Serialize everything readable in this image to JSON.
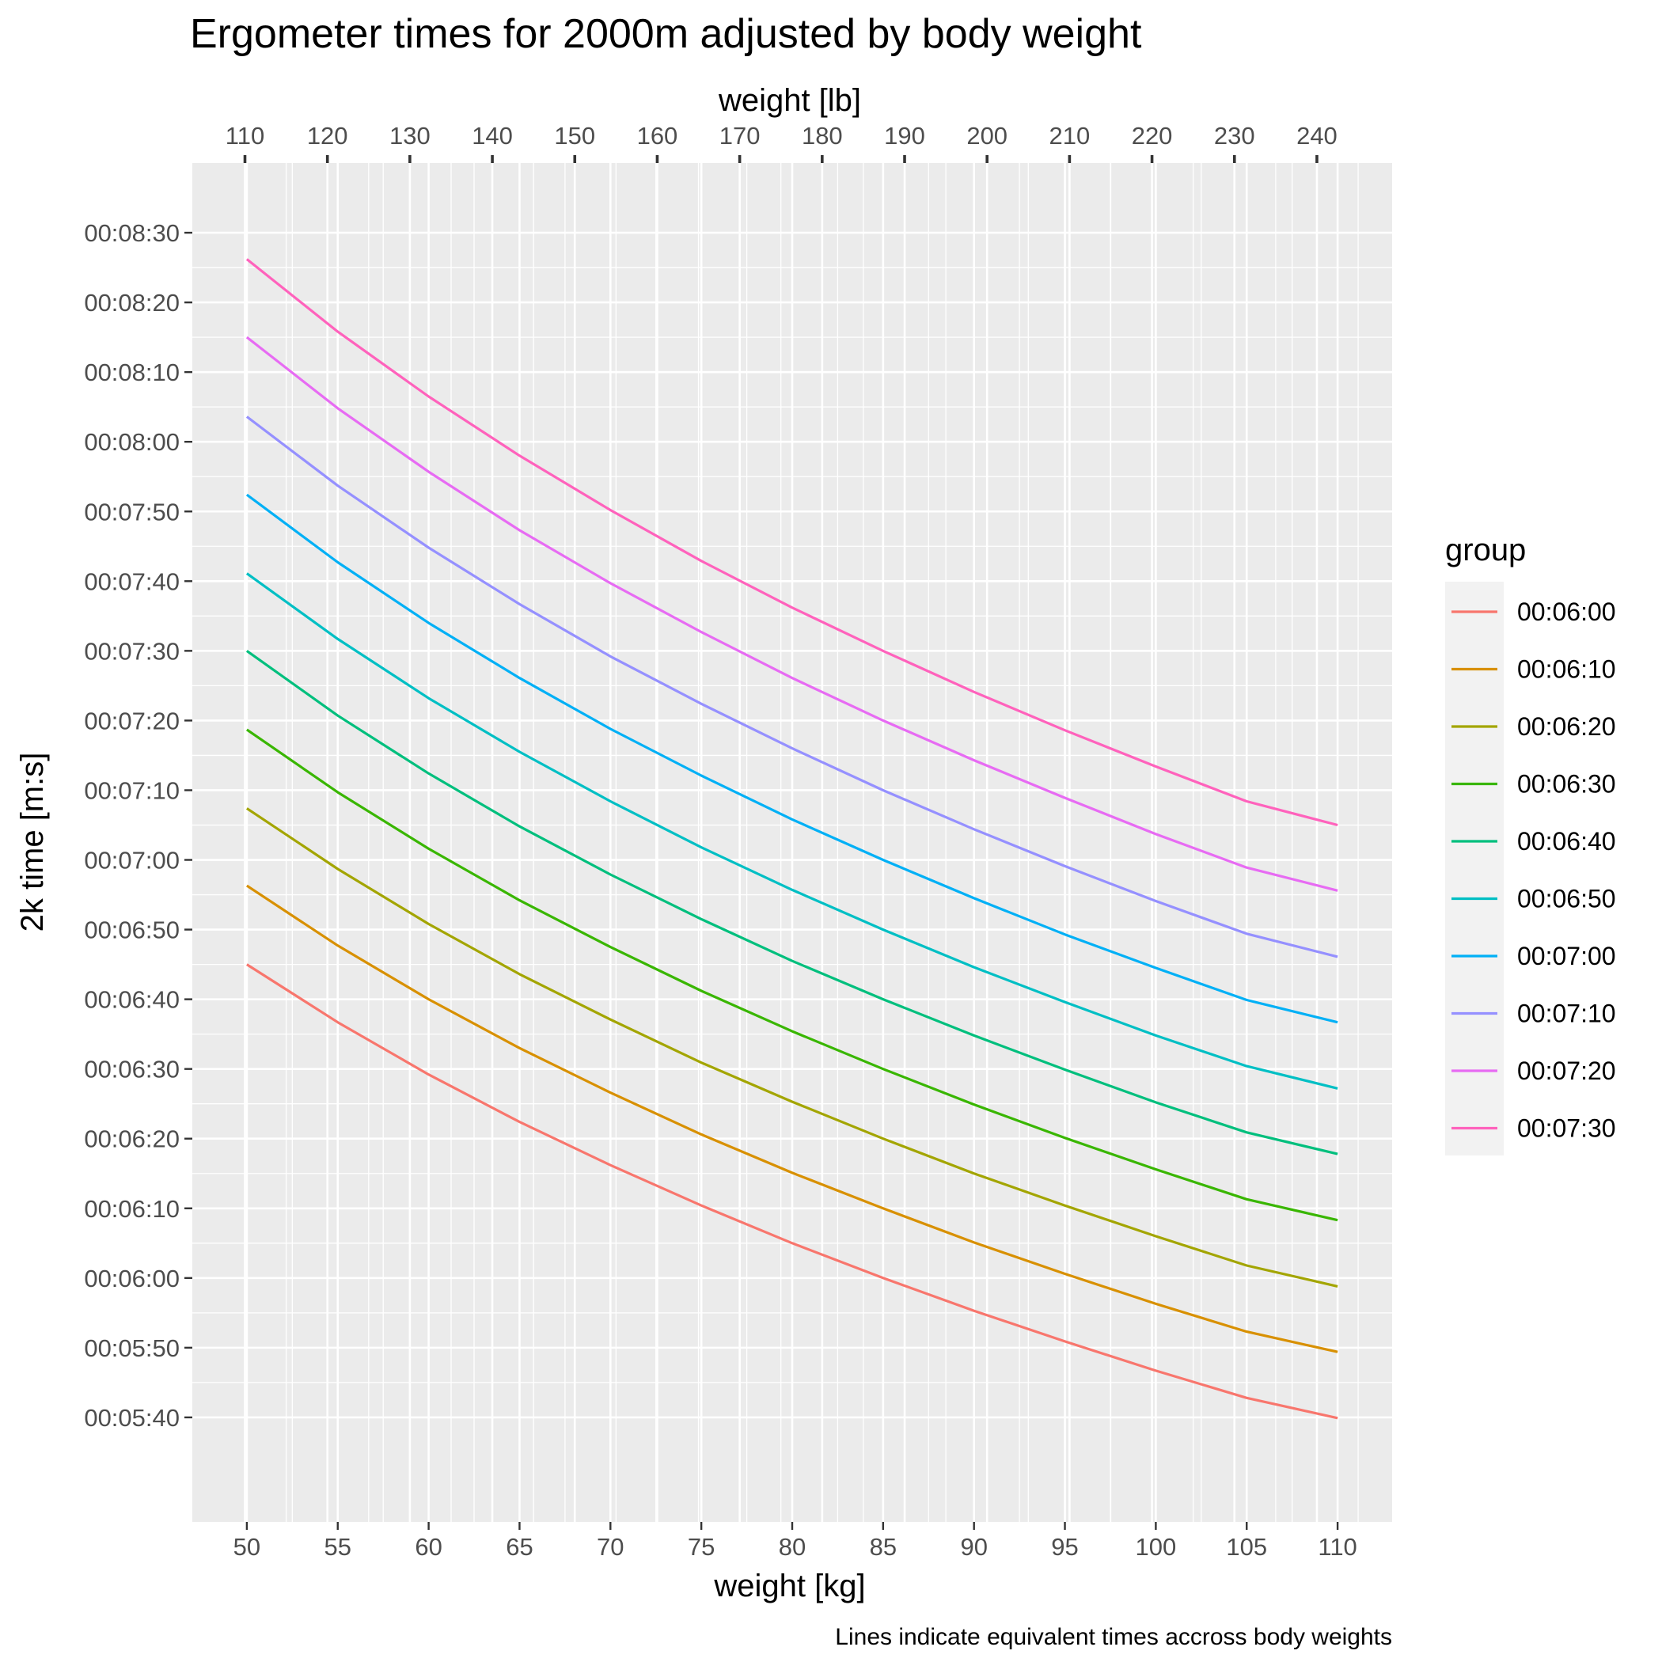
{
  "chart_data": {
    "type": "line",
    "title": "Ergometer times for 2000m adjusted by body weight",
    "xlabel": "weight [kg]",
    "ylabel": "2k time [m:s]",
    "x2label": "weight [lb]",
    "caption": "Lines indicate equivalent times accross body weights",
    "legend_title": "group",
    "legend_position": "right",
    "grid": true,
    "xlim": [
      47,
      113
    ],
    "ylim": [
      325,
      520
    ],
    "x_ticks": [
      50,
      55,
      60,
      65,
      70,
      75,
      80,
      85,
      90,
      95,
      100,
      105,
      110
    ],
    "x_tick_labels": [
      "50",
      "55",
      "60",
      "65",
      "70",
      "75",
      "80",
      "85",
      "90",
      "95",
      "100",
      "105",
      "110"
    ],
    "x2_ticks_lb": [
      110,
      120,
      130,
      140,
      150,
      160,
      170,
      180,
      190,
      200,
      210,
      220,
      230,
      240
    ],
    "x2_tick_labels": [
      "110",
      "120",
      "130",
      "140",
      "150",
      "160",
      "170",
      "180",
      "190",
      "200",
      "210",
      "220",
      "230",
      "240"
    ],
    "lb_per_kg": 2.20462,
    "y_ticks": [
      340,
      350,
      360,
      370,
      380,
      390,
      400,
      410,
      420,
      430,
      440,
      450,
      460,
      470,
      480,
      490,
      500,
      510
    ],
    "y_tick_labels": [
      "00:05:40",
      "00:05:50",
      "00:06:00",
      "00:06:10",
      "00:06:20",
      "00:06:30",
      "00:06:40",
      "00:06:50",
      "00:07:00",
      "00:07:10",
      "00:07:20",
      "00:07:30",
      "00:07:40",
      "00:07:50",
      "00:08:00",
      "00:08:10",
      "00:08:20",
      "00:08:30"
    ],
    "y_unit": "seconds",
    "x": [
      50,
      55,
      60,
      65,
      70,
      75,
      80,
      85,
      90,
      95,
      100,
      105,
      110
    ],
    "series": [
      {
        "name": "00:06:00",
        "color": "#F8766D",
        "values": [
          405,
          396.7,
          389.2,
          382.4,
          376.2,
          370.4,
          365.0,
          360.0,
          355.3,
          350.9,
          346.7,
          342.8,
          339.9
        ]
      },
      {
        "name": "00:06:10",
        "color": "#D89000",
        "values": [
          416.3,
          407.7,
          400.0,
          393.0,
          386.6,
          380.6,
          375.1,
          370.0,
          365.1,
          360.6,
          356.3,
          352.3,
          349.4
        ]
      },
      {
        "name": "00:06:20",
        "color": "#A3A500",
        "values": [
          427.4,
          418.7,
          410.8,
          403.6,
          397.1,
          390.9,
          385.3,
          380.0,
          375.0,
          370.4,
          366.0,
          361.8,
          358.8
        ]
      },
      {
        "name": "00:06:30",
        "color": "#39B600",
        "values": [
          438.7,
          429.7,
          421.6,
          414.2,
          407.5,
          401.2,
          395.4,
          390.0,
          384.9,
          380.1,
          375.6,
          371.3,
          368.3
        ]
      },
      {
        "name": "00:06:40",
        "color": "#00BF7D",
        "values": [
          450.0,
          440.7,
          432.4,
          424.8,
          417.9,
          411.5,
          405.5,
          400.0,
          394.8,
          389.9,
          385.2,
          380.9,
          377.8
        ]
      },
      {
        "name": "00:06:50",
        "color": "#00BFC4",
        "values": [
          461.1,
          451.7,
          443.2,
          435.5,
          428.4,
          421.8,
          415.7,
          410.0,
          404.6,
          399.6,
          394.8,
          390.4,
          387.2
        ]
      },
      {
        "name": "00:07:00",
        "color": "#00B0F6",
        "values": [
          472.4,
          462.7,
          454.0,
          446.1,
          438.8,
          432.1,
          425.8,
          420.0,
          414.5,
          409.3,
          404.5,
          399.9,
          396.7
        ]
      },
      {
        "name": "00:07:10",
        "color": "#9590FF",
        "values": [
          483.6,
          473.7,
          464.8,
          456.7,
          449.2,
          442.4,
          436.0,
          430.0,
          424.4,
          419.1,
          414.1,
          409.4,
          406.1
        ]
      },
      {
        "name": "00:07:20",
        "color": "#E76BF3",
        "values": [
          495.0,
          484.8,
          475.7,
          467.3,
          459.7,
          452.7,
          446.1,
          440.0,
          434.3,
          428.9,
          423.7,
          418.9,
          415.6
        ]
      },
      {
        "name": "00:07:30",
        "color": "#FF62BC",
        "values": [
          506.2,
          495.8,
          486.5,
          478.0,
          470.2,
          462.9,
          456.2,
          450.0,
          444.1,
          438.6,
          433.4,
          428.4,
          425.0
        ]
      }
    ]
  }
}
